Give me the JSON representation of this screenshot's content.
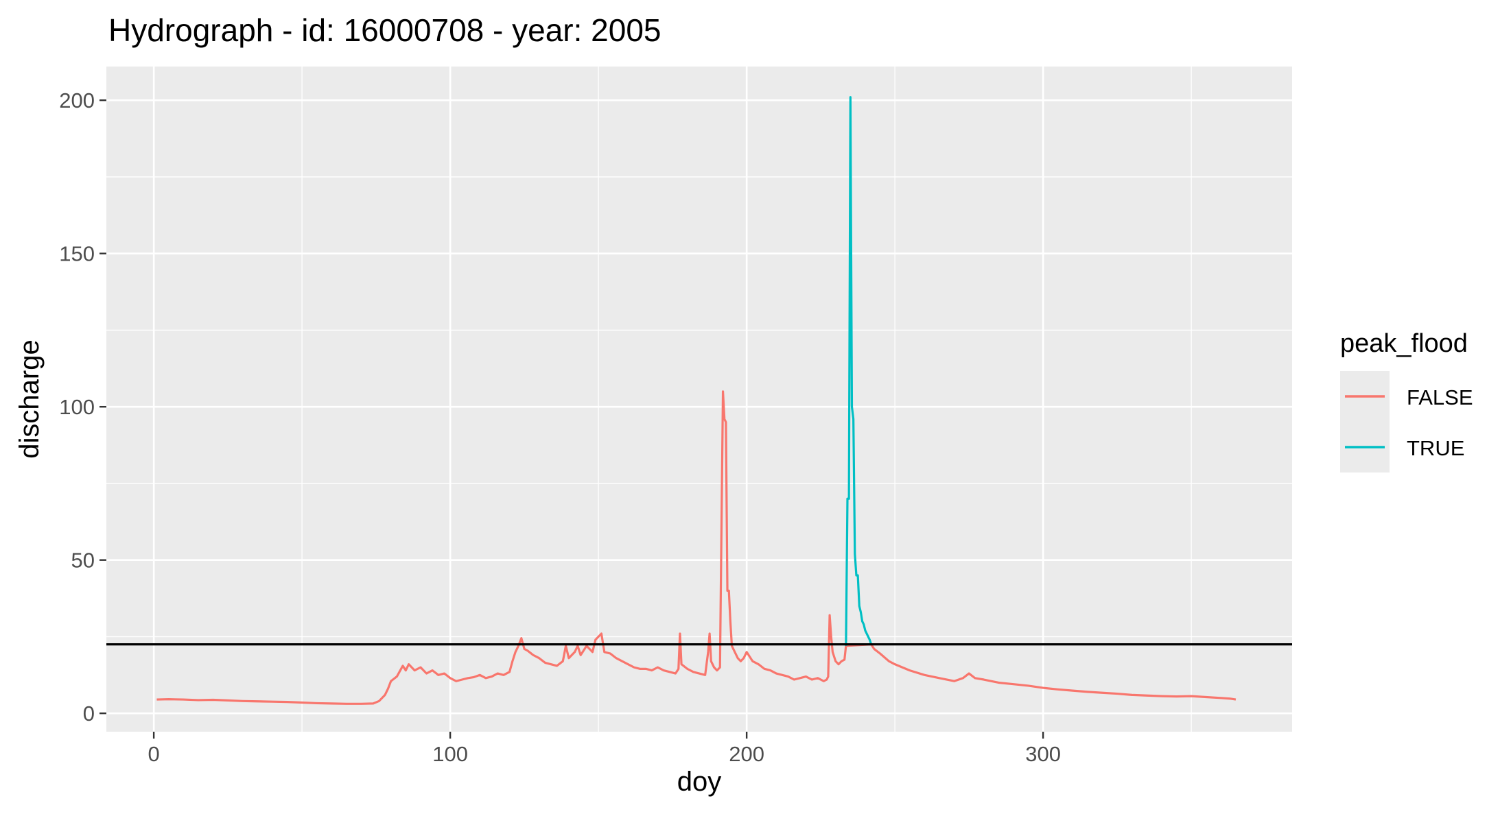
{
  "chart_data": {
    "type": "line",
    "title": "Hydrograph - id: 16000708 - year: 2005",
    "xlabel": "doy",
    "ylabel": "discharge",
    "xlim": [
      -16,
      384
    ],
    "ylim": [
      -6,
      211
    ],
    "x_ticks": [
      0,
      100,
      200,
      300
    ],
    "x_minor": [
      50,
      150,
      250,
      350
    ],
    "y_ticks": [
      0,
      50,
      100,
      150,
      200
    ],
    "y_minor": [
      25,
      75,
      125,
      175
    ],
    "x_tick_labels": [
      "0",
      "100",
      "200",
      "300"
    ],
    "y_tick_labels": [
      "0",
      "50",
      "100",
      "150",
      "200"
    ],
    "grid": true,
    "hline": 22.5,
    "legend": {
      "title": "peak_flood",
      "position": "right",
      "entries": [
        {
          "label": "FALSE",
          "color": "#F8766D"
        },
        {
          "label": "TRUE",
          "color": "#00BFC4"
        }
      ]
    },
    "series": [
      {
        "name": "FALSE",
        "color": "#F8766D",
        "points": [
          [
            1,
            4.5
          ],
          [
            5,
            4.6
          ],
          [
            10,
            4.5
          ],
          [
            15,
            4.3
          ],
          [
            20,
            4.4
          ],
          [
            25,
            4.2
          ],
          [
            30,
            4.0
          ],
          [
            35,
            3.9
          ],
          [
            40,
            3.8
          ],
          [
            45,
            3.7
          ],
          [
            50,
            3.5
          ],
          [
            55,
            3.3
          ],
          [
            60,
            3.2
          ],
          [
            65,
            3.1
          ],
          [
            70,
            3.1
          ],
          [
            74,
            3.2
          ],
          [
            76,
            4.0
          ],
          [
            78,
            6.0
          ],
          [
            79,
            8.0
          ],
          [
            80,
            10.5
          ],
          [
            82,
            12.0
          ],
          [
            84,
            15.5
          ],
          [
            85,
            14.0
          ],
          [
            86,
            16.0
          ],
          [
            88,
            14.0
          ],
          [
            90,
            15.0
          ],
          [
            92,
            13.0
          ],
          [
            94,
            14.0
          ],
          [
            96,
            12.5
          ],
          [
            98,
            13.0
          ],
          [
            100,
            11.5
          ],
          [
            102,
            10.5
          ],
          [
            104,
            11.0
          ],
          [
            106,
            11.5
          ],
          [
            108,
            11.8
          ],
          [
            110,
            12.5
          ],
          [
            112,
            11.5
          ],
          [
            114,
            12.0
          ],
          [
            116,
            13.0
          ],
          [
            118,
            12.5
          ],
          [
            120,
            13.5
          ],
          [
            121,
            17.0
          ],
          [
            122,
            20.0
          ],
          [
            123,
            22.0
          ],
          [
            124,
            24.5
          ],
          [
            125,
            21.0
          ],
          [
            126,
            20.5
          ],
          [
            128,
            19.0
          ],
          [
            130,
            18.0
          ],
          [
            132,
            16.5
          ],
          [
            134,
            16.0
          ],
          [
            136,
            15.5
          ],
          [
            138,
            17.0
          ],
          [
            139,
            22.0
          ],
          [
            140,
            18.0
          ],
          [
            142,
            20.0
          ],
          [
            143,
            22.0
          ],
          [
            144,
            19.0
          ],
          [
            146,
            22.0
          ],
          [
            148,
            20.0
          ],
          [
            149,
            24.0
          ],
          [
            150,
            25.0
          ],
          [
            151,
            26.0
          ],
          [
            152,
            20.0
          ],
          [
            154,
            19.5
          ],
          [
            156,
            18.0
          ],
          [
            158,
            17.0
          ],
          [
            160,
            16.0
          ],
          [
            162,
            15.0
          ],
          [
            164,
            14.5
          ],
          [
            166,
            14.5
          ],
          [
            168,
            14.0
          ],
          [
            170,
            15.0
          ],
          [
            172,
            14.0
          ],
          [
            174,
            13.5
          ],
          [
            176,
            13.0
          ],
          [
            177,
            14.5
          ],
          [
            177.5,
            26.0
          ],
          [
            178,
            16.0
          ],
          [
            180,
            14.5
          ],
          [
            182,
            13.5
          ],
          [
            184,
            13.0
          ],
          [
            186,
            12.5
          ],
          [
            187,
            20.0
          ],
          [
            187.5,
            26.0
          ],
          [
            188,
            17.0
          ],
          [
            189,
            15.0
          ],
          [
            190,
            14.0
          ],
          [
            191,
            15.0
          ],
          [
            191.5,
            60.0
          ],
          [
            192,
            105.0
          ],
          [
            192.5,
            96.0
          ],
          [
            193,
            95.0
          ],
          [
            193.5,
            40.0
          ],
          [
            194,
            40.0
          ],
          [
            194.5,
            30.0
          ],
          [
            195,
            22.0
          ],
          [
            196,
            20.0
          ],
          [
            197,
            18.0
          ],
          [
            198,
            17.0
          ],
          [
            199,
            18.0
          ],
          [
            200,
            20.0
          ],
          [
            202,
            17.0
          ],
          [
            204,
            16.0
          ],
          [
            206,
            14.5
          ],
          [
            208,
            14.0
          ],
          [
            210,
            13.0
          ],
          [
            212,
            12.5
          ],
          [
            214,
            12.0
          ],
          [
            216,
            11.0
          ],
          [
            218,
            11.5
          ],
          [
            220,
            12.0
          ],
          [
            222,
            11.0
          ],
          [
            224,
            11.5
          ],
          [
            226,
            10.5
          ],
          [
            227,
            11.0
          ],
          [
            227.5,
            12.0
          ],
          [
            228,
            32.0
          ],
          [
            228.5,
            25.0
          ],
          [
            229,
            20.0
          ],
          [
            230,
            17.0
          ],
          [
            231,
            16.0
          ],
          [
            232,
            17.0
          ],
          [
            233,
            17.5
          ],
          [
            233.5,
            22.0
          ],
          [
            242,
            22.5
          ],
          [
            243,
            21.0
          ],
          [
            245,
            19.5
          ],
          [
            248,
            17.0
          ],
          [
            250,
            16.0
          ],
          [
            255,
            14.0
          ],
          [
            260,
            12.5
          ],
          [
            265,
            11.5
          ],
          [
            270,
            10.5
          ],
          [
            273,
            11.5
          ],
          [
            275,
            13.0
          ],
          [
            277,
            11.5
          ],
          [
            280,
            11.0
          ],
          [
            285,
            10.0
          ],
          [
            290,
            9.5
          ],
          [
            295,
            9.0
          ],
          [
            300,
            8.3
          ],
          [
            305,
            7.8
          ],
          [
            310,
            7.4
          ],
          [
            315,
            7.0
          ],
          [
            320,
            6.7
          ],
          [
            325,
            6.4
          ],
          [
            330,
            6.0
          ],
          [
            335,
            5.8
          ],
          [
            340,
            5.6
          ],
          [
            345,
            5.5
          ],
          [
            350,
            5.6
          ],
          [
            355,
            5.3
          ],
          [
            360,
            5.0
          ],
          [
            363,
            4.8
          ],
          [
            365,
            4.5
          ]
        ]
      },
      {
        "name": "TRUE",
        "color": "#00BFC4",
        "points": [
          [
            233.5,
            22.0
          ],
          [
            234,
            70.0
          ],
          [
            234.5,
            70.0
          ],
          [
            235,
            201.0
          ],
          [
            235.5,
            100.0
          ],
          [
            236,
            96.0
          ],
          [
            236.5,
            52.0
          ],
          [
            237,
            45.0
          ],
          [
            237.5,
            45.0
          ],
          [
            238,
            35.0
          ],
          [
            238.5,
            33.0
          ],
          [
            239,
            30.0
          ],
          [
            239.5,
            29.0
          ],
          [
            240,
            27.0
          ],
          [
            240.5,
            26.0
          ],
          [
            241,
            25.0
          ],
          [
            241.5,
            24.0
          ],
          [
            242,
            22.5
          ]
        ]
      }
    ]
  }
}
